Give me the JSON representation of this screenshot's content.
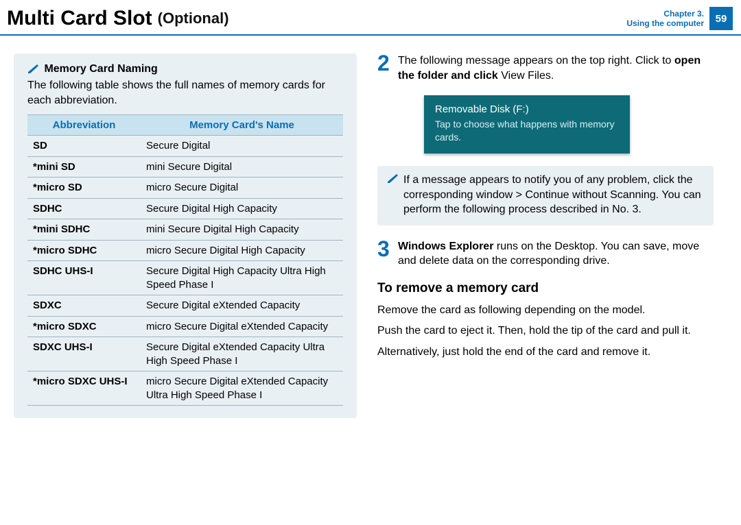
{
  "header": {
    "title_main": "Multi Card Slot",
    "title_optional": "(Optional)",
    "chapter_line1": "Chapter 3.",
    "chapter_line2": "Using the computer",
    "page_number": "59"
  },
  "left": {
    "memory_naming_title": "Memory Card Naming",
    "memory_naming_desc": "The following table shows the full names of memory cards for each abbreviation.",
    "table_header_abbr": "Abbreviation",
    "table_header_name": "Memory Card's Name",
    "rows": [
      {
        "abbr": "SD",
        "name": "Secure Digital"
      },
      {
        "abbr": "*mini SD",
        "name": "mini Secure Digital"
      },
      {
        "abbr": "*micro SD",
        "name": "micro Secure Digital"
      },
      {
        "abbr": "SDHC",
        "name": "Secure Digital High Capacity"
      },
      {
        "abbr": "*mini SDHC",
        "name": "mini Secure Digital High Capacity"
      },
      {
        "abbr": "*micro SDHC",
        "name": "micro Secure Digital High Capacity"
      },
      {
        "abbr": "SDHC UHS-I",
        "name": "Secure Digital High Capacity Ultra High Speed Phase I"
      },
      {
        "abbr": "SDXC",
        "name": "Secure Digital eXtended Capacity"
      },
      {
        "abbr": "*micro SDXC",
        "name": "micro Secure Digital eXtended Capacity"
      },
      {
        "abbr": "SDXC UHS-I",
        "name": "Secure Digital eXtended Capacity Ultra High Speed Phase I"
      },
      {
        "abbr": "*micro SDXC UHS-I",
        "name": "micro Secure Digital eXtended Capacity Ultra High Speed Phase I"
      }
    ]
  },
  "right": {
    "step2": {
      "num": "2",
      "text_before": "The following message appears on the top right. Click to ",
      "text_bold": "open the folder and click",
      "text_after": " View Files."
    },
    "toast": {
      "title": "Removable Disk (F:)",
      "msg": "Tap to choose what happens with memory cards."
    },
    "note": {
      "t1": "If a message appears to notify you of any problem, click the corresponding window ",
      "b1": "> Continue without Scanning",
      "t2": ". You can perform the following process described in No. 3."
    },
    "step3": {
      "num": "3",
      "b1": "Windows Explorer",
      "t1": " runs on the Desktop. You can save, move and delete data on the corresponding drive."
    },
    "remove_heading": "To remove a memory card",
    "remove_p1": "Remove the card as following depending on the model.",
    "remove_p2": "Push the card to eject it. Then, hold the tip of the card and pull it.",
    "remove_p3": "Alternatively, just hold the end of the card and remove it."
  },
  "colors": {
    "accent": "#0a6eb4",
    "info_bg": "#e9f0f4",
    "table_header_bg": "#c9e2ef",
    "toast_bg": "#0f6a77"
  }
}
